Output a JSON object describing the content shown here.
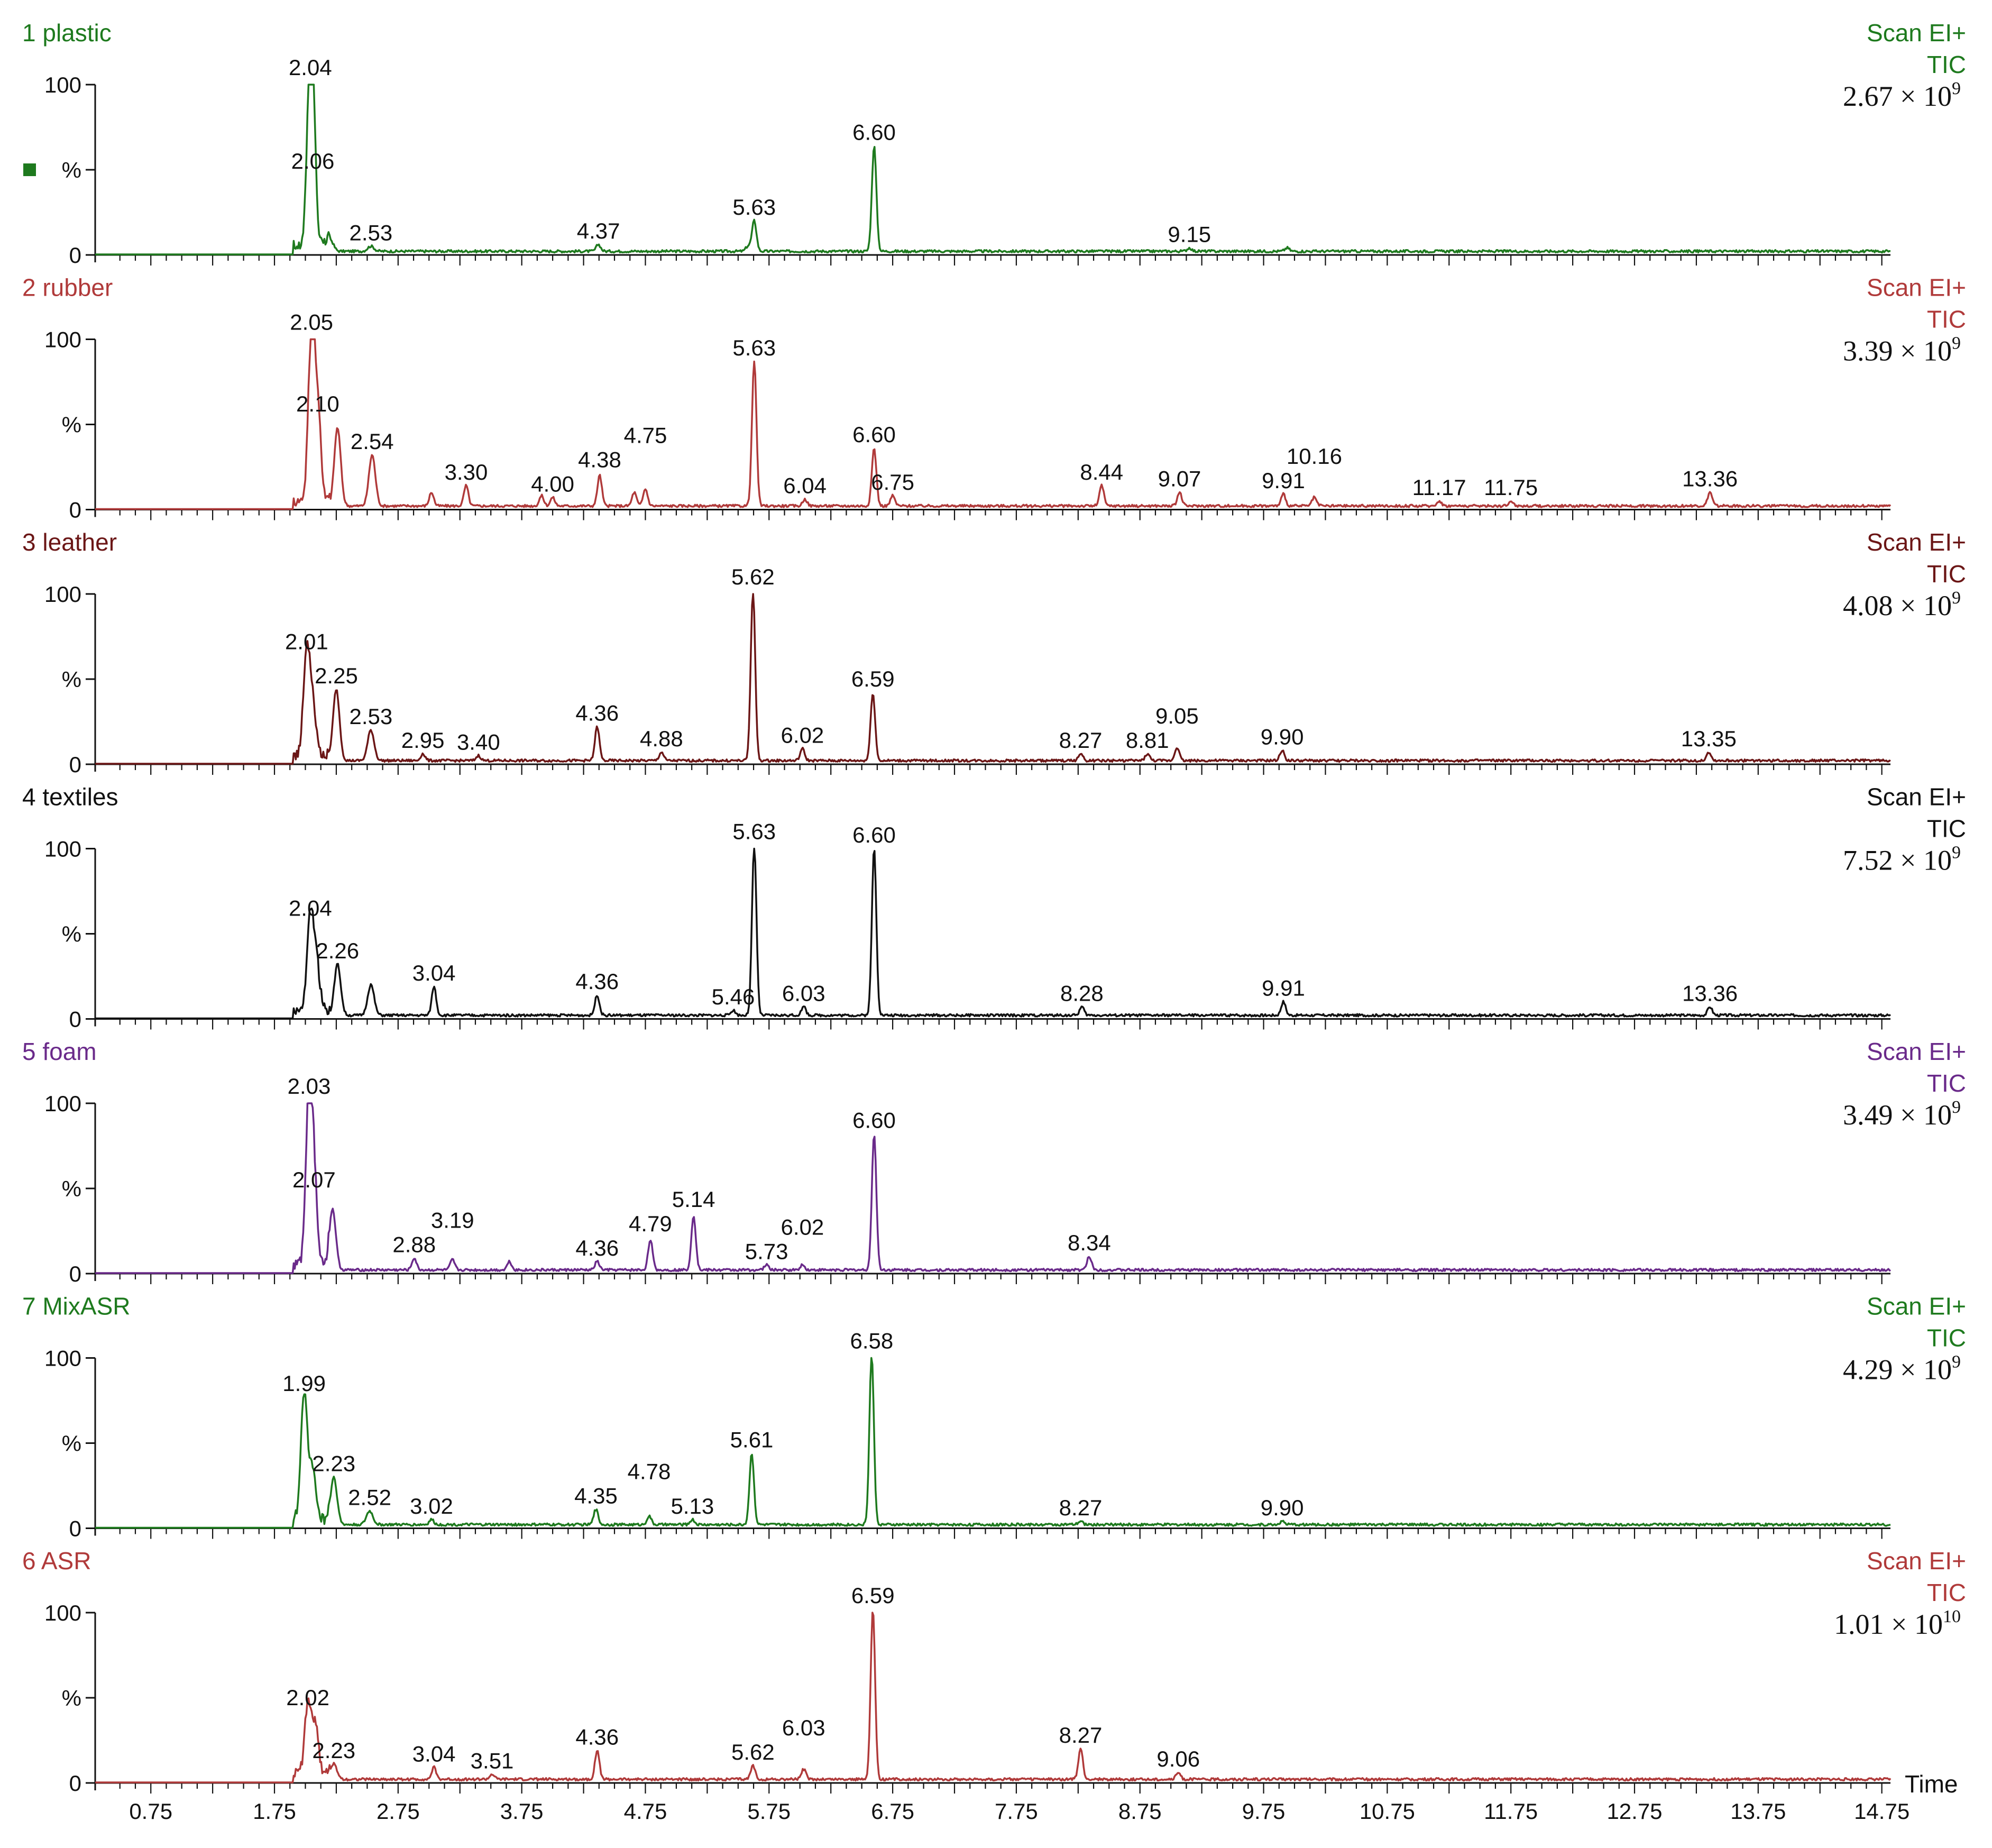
{
  "chart_data": {
    "type": "line",
    "xlabel": "Time",
    "x_ticks": [
      "0.75",
      "1.75",
      "2.75",
      "3.75",
      "4.75",
      "5.75",
      "6.75",
      "7.75",
      "8.75",
      "9.75",
      "10.75",
      "11.75",
      "12.75",
      "13.75",
      "14.75"
    ],
    "xlim": [
      0.3,
      14.82
    ],
    "y_ticks": [
      "0",
      "%",
      "100"
    ],
    "ylim": [
      0,
      100
    ],
    "panels": [
      {
        "label": "1 plastic",
        "color": "#1e7a1e",
        "scan": "Scan EI+",
        "tic": "TIC",
        "scale": {
          "mant": "2.67",
          "exp": "9"
        },
        "legend_marker": true,
        "peaks": [
          [
            2.04,
            100
          ],
          [
            2.06,
            45
          ],
          [
            2.2,
            7
          ],
          [
            2.53,
            3
          ],
          [
            4.37,
            4
          ],
          [
            5.58,
            3
          ],
          [
            5.63,
            18
          ],
          [
            6.6,
            62
          ],
          [
            9.15,
            2
          ],
          [
            9.94,
            2
          ]
        ],
        "labels": [
          [
            2.04,
            "2.04"
          ],
          [
            2.06,
            "2.06"
          ],
          [
            2.53,
            "2.53"
          ],
          [
            4.37,
            "4.37"
          ],
          [
            5.63,
            "5.63"
          ],
          [
            6.6,
            "6.60"
          ],
          [
            9.15,
            "9.15"
          ]
        ]
      },
      {
        "label": "2 rubber",
        "color": "#b03a3a",
        "scan": "Scan EI+",
        "tic": "TIC",
        "scale": {
          "mant": "3.39",
          "exp": "9"
        },
        "peaks": [
          [
            2.05,
            100
          ],
          [
            2.1,
            52
          ],
          [
            2.26,
            46
          ],
          [
            2.54,
            30
          ],
          [
            3.02,
            8
          ],
          [
            3.3,
            12
          ],
          [
            3.91,
            6
          ],
          [
            4.0,
            5
          ],
          [
            4.38,
            18
          ],
          [
            4.66,
            8
          ],
          [
            4.75,
            10
          ],
          [
            5.63,
            85
          ],
          [
            6.04,
            4
          ],
          [
            6.6,
            34
          ],
          [
            6.75,
            6
          ],
          [
            8.44,
            12
          ],
          [
            9.07,
            8
          ],
          [
            9.91,
            7
          ],
          [
            10.16,
            5
          ],
          [
            11.17,
            3
          ],
          [
            11.75,
            3
          ],
          [
            13.36,
            8
          ]
        ],
        "labels": [
          [
            2.05,
            "2.05"
          ],
          [
            2.1,
            "2.10"
          ],
          [
            2.54,
            "2.54"
          ],
          [
            3.3,
            "3.30"
          ],
          [
            4.0,
            "4.00"
          ],
          [
            4.38,
            "4.38"
          ],
          [
            4.75,
            "4.75"
          ],
          [
            5.63,
            "5.63"
          ],
          [
            6.04,
            "6.04"
          ],
          [
            6.6,
            "6.60"
          ],
          [
            6.75,
            "6.75"
          ],
          [
            8.44,
            "8.44"
          ],
          [
            9.07,
            "9.07"
          ],
          [
            9.91,
            "9.91"
          ],
          [
            10.16,
            "10.16"
          ],
          [
            11.17,
            "11.17"
          ],
          [
            11.75,
            "11.75"
          ],
          [
            13.36,
            "13.36"
          ]
        ]
      },
      {
        "label": "3 leather",
        "color": "#6b1616",
        "scan": "Scan EI+",
        "tic": "TIC",
        "scale": {
          "mant": "4.08",
          "exp": "9"
        },
        "peaks": [
          [
            2.01,
            62
          ],
          [
            2.06,
            28
          ],
          [
            2.25,
            42
          ],
          [
            2.53,
            18
          ],
          [
            2.95,
            4
          ],
          [
            3.4,
            3
          ],
          [
            4.36,
            20
          ],
          [
            4.88,
            5
          ],
          [
            5.62,
            100
          ],
          [
            6.02,
            7
          ],
          [
            6.59,
            40
          ],
          [
            8.27,
            4
          ],
          [
            8.81,
            4
          ],
          [
            9.05,
            8
          ],
          [
            9.9,
            6
          ],
          [
            13.35,
            5
          ]
        ],
        "labels": [
          [
            2.01,
            "2.01"
          ],
          [
            2.25,
            "2.25"
          ],
          [
            2.53,
            "2.53"
          ],
          [
            2.95,
            "2.95"
          ],
          [
            3.4,
            "3.40"
          ],
          [
            4.36,
            "4.36"
          ],
          [
            4.88,
            "4.88"
          ],
          [
            5.62,
            "5.62"
          ],
          [
            6.02,
            "6.02"
          ],
          [
            6.59,
            "6.59"
          ],
          [
            8.27,
            "8.27"
          ],
          [
            8.81,
            "8.81"
          ],
          [
            9.05,
            "9.05"
          ],
          [
            9.9,
            "9.90"
          ],
          [
            13.35,
            "13.35"
          ]
        ]
      },
      {
        "label": "4 textiles",
        "color": "#111111",
        "scan": "Scan EI+",
        "tic": "TIC",
        "scale": {
          "mant": "7.52",
          "exp": "9"
        },
        "peaks": [
          [
            2.04,
            55
          ],
          [
            2.09,
            28
          ],
          [
            2.26,
            30
          ],
          [
            2.53,
            18
          ],
          [
            3.04,
            17
          ],
          [
            4.36,
            12
          ],
          [
            5.46,
            3
          ],
          [
            5.63,
            100
          ],
          [
            6.03,
            5
          ],
          [
            6.6,
            98
          ],
          [
            8.28,
            5
          ],
          [
            9.91,
            8
          ],
          [
            13.36,
            5
          ]
        ],
        "labels": [
          [
            2.04,
            "2.04"
          ],
          [
            2.26,
            "2.26"
          ],
          [
            3.04,
            "3.04"
          ],
          [
            4.36,
            "4.36"
          ],
          [
            5.46,
            "5.46"
          ],
          [
            5.63,
            "5.63"
          ],
          [
            6.03,
            "6.03"
          ],
          [
            6.6,
            "6.60"
          ],
          [
            8.28,
            "8.28"
          ],
          [
            9.91,
            "9.91"
          ],
          [
            13.36,
            "13.36"
          ]
        ]
      },
      {
        "label": "5 foam",
        "color": "#6a2a8a",
        "scan": "Scan EI+",
        "tic": "TIC",
        "scale": {
          "mant": "3.49",
          "exp": "9"
        },
        "peaks": [
          [
            2.03,
            100
          ],
          [
            2.07,
            45
          ],
          [
            2.22,
            36
          ],
          [
            2.88,
            7
          ],
          [
            3.19,
            6
          ],
          [
            3.65,
            5
          ],
          [
            4.36,
            5
          ],
          [
            4.79,
            18
          ],
          [
            5.14,
            32
          ],
          [
            5.73,
            3
          ],
          [
            6.02,
            3
          ],
          [
            6.6,
            80
          ],
          [
            8.34,
            8
          ]
        ],
        "labels": [
          [
            2.03,
            "2.03"
          ],
          [
            2.07,
            "2.07"
          ],
          [
            2.88,
            "2.88"
          ],
          [
            3.19,
            "3.19"
          ],
          [
            4.36,
            "4.36"
          ],
          [
            4.79,
            "4.79"
          ],
          [
            5.14,
            "5.14"
          ],
          [
            5.73,
            "5.73"
          ],
          [
            6.02,
            "6.02"
          ],
          [
            6.6,
            "6.60"
          ],
          [
            8.34,
            "8.34"
          ]
        ]
      },
      {
        "label": "7 MixASR",
        "color": "#1e7a1e",
        "scan": "Scan EI+",
        "tic": "TIC",
        "scale": {
          "mant": "4.29",
          "exp": "9"
        },
        "peaks": [
          [
            1.99,
            75
          ],
          [
            2.06,
            30
          ],
          [
            2.23,
            28
          ],
          [
            2.52,
            8
          ],
          [
            3.02,
            3
          ],
          [
            4.35,
            9
          ],
          [
            4.78,
            5
          ],
          [
            5.13,
            3
          ],
          [
            5.61,
            42
          ],
          [
            6.58,
            100
          ],
          [
            8.27,
            2
          ],
          [
            9.9,
            2
          ]
        ],
        "labels": [
          [
            1.99,
            "1.99"
          ],
          [
            2.23,
            "2.23"
          ],
          [
            2.52,
            "2.52"
          ],
          [
            3.02,
            "3.02"
          ],
          [
            4.35,
            "4.35"
          ],
          [
            4.78,
            "4.78"
          ],
          [
            5.13,
            "5.13"
          ],
          [
            5.61,
            "5.61"
          ],
          [
            6.58,
            "6.58"
          ],
          [
            8.27,
            "8.27"
          ],
          [
            9.9,
            "9.90"
          ]
        ]
      },
      {
        "label": "6 ASR",
        "color": "#b03a3a",
        "scan": "Scan EI+",
        "tic": "TIC",
        "scale": {
          "mant": "1.01",
          "exp": "10"
        },
        "peaks": [
          [
            2.02,
            40
          ],
          [
            2.08,
            28
          ],
          [
            2.23,
            9
          ],
          [
            3.04,
            7
          ],
          [
            3.51,
            3
          ],
          [
            4.36,
            17
          ],
          [
            5.62,
            8
          ],
          [
            6.03,
            6
          ],
          [
            6.59,
            100
          ],
          [
            8.27,
            18
          ],
          [
            9.06,
            4
          ]
        ],
        "labels": [
          [
            2.02,
            "2.02"
          ],
          [
            2.23,
            "2.23"
          ],
          [
            3.04,
            "3.04"
          ],
          [
            3.51,
            "3.51"
          ],
          [
            4.36,
            "4.36"
          ],
          [
            5.62,
            "5.62"
          ],
          [
            6.03,
            "6.03"
          ],
          [
            6.59,
            "6.59"
          ],
          [
            8.27,
            "8.27"
          ],
          [
            9.06,
            "9.06"
          ]
        ]
      }
    ]
  }
}
